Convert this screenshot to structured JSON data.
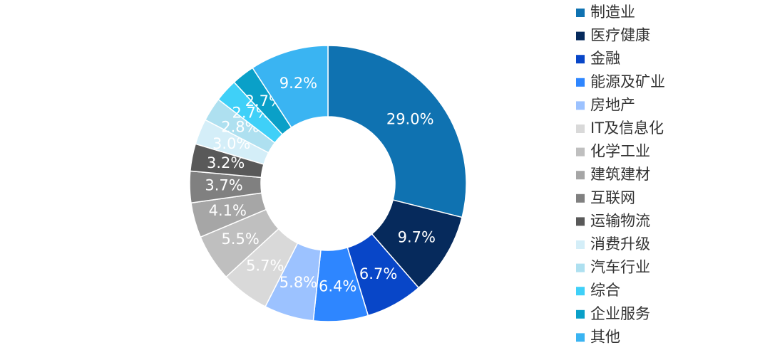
{
  "chart_data": {
    "type": "donut",
    "categories": [
      "制造业",
      "医疗健康",
      "金融",
      "能源及矿业",
      "房地产",
      "IT及信息化",
      "化学工业",
      "建筑建材",
      "互联网",
      "运输物流",
      "消费升级",
      "汽车行业",
      "综合",
      "企业服务",
      "其他"
    ],
    "values": [
      29.0,
      9.7,
      6.7,
      6.4,
      5.8,
      5.7,
      5.5,
      4.1,
      3.7,
      3.2,
      3.0,
      2.8,
      2.7,
      2.7,
      9.2
    ],
    "value_labels": [
      "29.0%",
      "9.7%",
      "6.7%",
      "6.4%",
      "5.8%",
      "5.7%",
      "5.5%",
      "4.1%",
      "3.7%",
      "3.2%",
      "3.0%",
      "2.8%",
      "2.7%",
      "2.7%",
      "9.2%"
    ],
    "colors": [
      "#0f72b1",
      "#062a5c",
      "#0846c8",
      "#2e86ff",
      "#9cc2ff",
      "#d9d9d9",
      "#bfbfbf",
      "#a6a6a6",
      "#808080",
      "#595959",
      "#d4eef8",
      "#aee0f0",
      "#3fd0f8",
      "#0aa0c8",
      "#3ab4f2"
    ]
  }
}
